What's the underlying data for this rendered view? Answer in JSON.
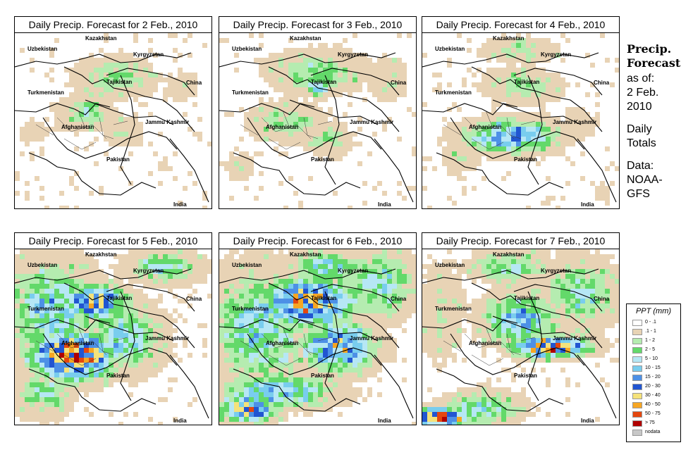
{
  "panels": [
    {
      "title": "Daily Precip. Forecast for  2 Feb., 2010",
      "day": 2
    },
    {
      "title": "Daily Precip. Forecast for  3 Feb., 2010",
      "day": 3
    },
    {
      "title": "Daily Precip. Forecast for  4 Feb., 2010",
      "day": 4
    },
    {
      "title": "Daily Precip. Forecast for  5 Feb., 2010",
      "day": 5
    },
    {
      "title": "Daily Precip. Forecast for  6 Feb., 2010",
      "day": 6
    },
    {
      "title": "Daily Precip. Forecast for  7 Feb., 2010",
      "day": 7
    }
  ],
  "map_labels": {
    "kazakhstan": "Kazakhstan",
    "uzbekistan": "Uzbekistan",
    "kyrgyzstan": "Kyrgyzstan",
    "tajikistan": "Tajikistan",
    "china": "China",
    "turkmenistan": "Turkmenistan",
    "afghanistan": "Afghanistan",
    "jammu_kashmir": "Jammu Kashmir",
    "pakistan": "Pakistan",
    "india": "India"
  },
  "side_info": {
    "heading_line1": "Precip.",
    "heading_line2": "Forecast",
    "as_of_line1": "as of:",
    "as_of_line2": "2 Feb.",
    "as_of_line3": "2010",
    "totals_line1": "Daily",
    "totals_line2": "Totals",
    "source_line1": "Data:",
    "source_line2": "NOAA-",
    "source_line3": "GFS"
  },
  "legend": {
    "title": "PPT (mm)",
    "classes": [
      {
        "label": "0 - .1",
        "color": "#ffffff"
      },
      {
        "label": ".1 - 1",
        "color": "#e8d3b5"
      },
      {
        "label": "1 - 2",
        "color": "#b5ecb0"
      },
      {
        "label": "2 - 5",
        "color": "#63d96a"
      },
      {
        "label": "5 - 10",
        "color": "#b6e7f5"
      },
      {
        "label": "10 - 15",
        "color": "#79cdee"
      },
      {
        "label": "15 - 20",
        "color": "#4d90e6"
      },
      {
        "label": "20 - 30",
        "color": "#2155d1"
      },
      {
        "label": "30 - 40",
        "color": "#f5e27a"
      },
      {
        "label": "40 - 50",
        "color": "#f6a623"
      },
      {
        "label": "50 - 75",
        "color": "#e4470f"
      },
      {
        "label": "> 75",
        "color": "#b00000"
      },
      {
        "label": "nodata",
        "color": "#c8c8c8"
      }
    ]
  }
}
